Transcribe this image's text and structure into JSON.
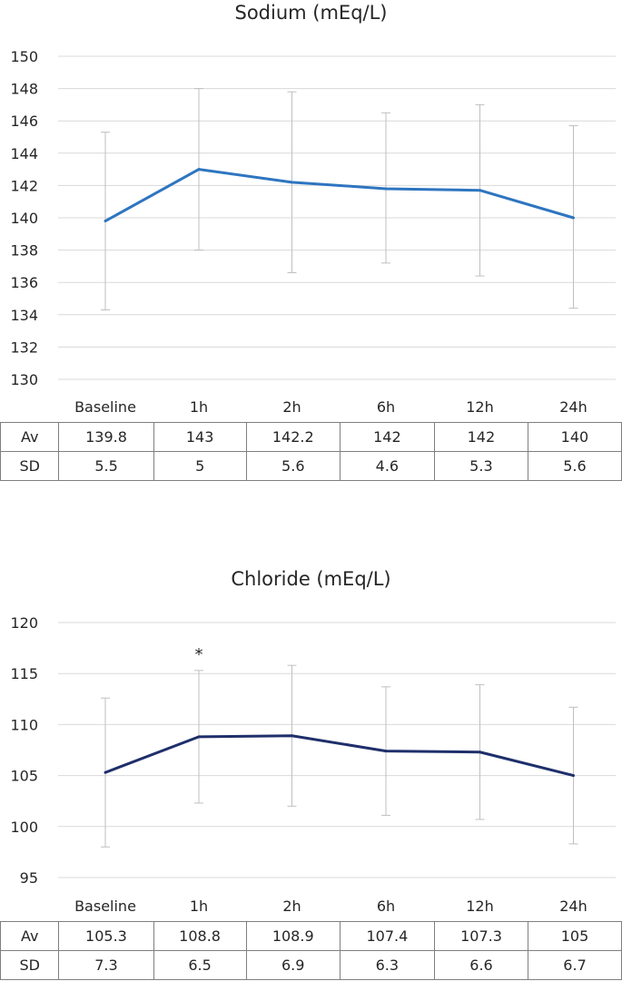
{
  "chart_data": [
    {
      "type": "line",
      "title": "Sodium (mEq/L)",
      "categories": [
        "Baseline",
        "1h",
        "2h",
        "6h",
        "12h",
        "24h"
      ],
      "series": [
        {
          "values": [
            139.8,
            143,
            142.2,
            141.8,
            141.7,
            140
          ],
          "error_low": [
            134.3,
            138,
            136.6,
            137.2,
            136.4,
            134.4
          ],
          "error_high": [
            145.3,
            148,
            147.8,
            146.5,
            147,
            145.7
          ]
        }
      ],
      "ylim": [
        130,
        150
      ],
      "yticks": [
        130,
        132,
        134,
        136,
        138,
        140,
        142,
        144,
        146,
        148,
        150
      ],
      "grid": true,
      "line_color": "#2e75c0",
      "table": {
        "rows": [
          {
            "label": "Av",
            "values": [
              "139.8",
              "143",
              "142.2",
              "142",
              "142",
              "140"
            ]
          },
          {
            "label": "SD",
            "values": [
              "5.5",
              "5",
              "5.6",
              "4.6",
              "5.3",
              "5.6"
            ]
          }
        ]
      },
      "annotations": []
    },
    {
      "type": "line",
      "title": "Chloride (mEq/L)",
      "categories": [
        "Baseline",
        "1h",
        "2h",
        "6h",
        "12h",
        "24h"
      ],
      "series": [
        {
          "values": [
            105.3,
            108.8,
            108.9,
            107.4,
            107.3,
            105
          ],
          "error_low": [
            98,
            102.3,
            102,
            101.1,
            100.7,
            98.3
          ],
          "error_high": [
            112.6,
            115.3,
            115.8,
            113.7,
            113.9,
            111.7
          ]
        }
      ],
      "ylim": [
        95,
        120
      ],
      "yticks": [
        95,
        100,
        105,
        110,
        115,
        120
      ],
      "grid": true,
      "line_color": "#1f2f6b",
      "table": {
        "rows": [
          {
            "label": "Av",
            "values": [
              "105.3",
              "108.8",
              "108.9",
              "107.4",
              "107.3",
              "105"
            ]
          },
          {
            "label": "SD",
            "values": [
              "7.3",
              "6.5",
              "6.9",
              "6.3",
              "6.6",
              "6.7"
            ]
          }
        ]
      },
      "annotations": [
        {
          "category": "1h",
          "text": "*"
        }
      ]
    }
  ]
}
